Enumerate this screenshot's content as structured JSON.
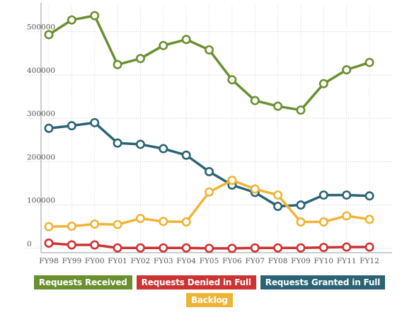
{
  "chart_data": {
    "type": "line",
    "categories": [
      "FY98",
      "FY99",
      "FY00",
      "FY01",
      "FY02",
      "FY03",
      "FY04",
      "FY05",
      "FY06",
      "FY07",
      "FY08",
      "FY09",
      "FY10",
      "FY11",
      "FY12"
    ],
    "y_tick_labels": [
      "0",
      "100000",
      "200000",
      "300000",
      "400000",
      "500000"
    ],
    "y_ticks": [
      0,
      100000,
      200000,
      300000,
      400000,
      500000
    ],
    "ylim": [
      -10000,
      560000
    ],
    "grid": true,
    "legend_position": "bottom",
    "series": [
      {
        "name": "Requests Received",
        "color": "#6a8f2f",
        "values": [
          493000,
          527000,
          537000,
          424000,
          438000,
          468000,
          482000,
          458000,
          389000,
          341000,
          328000,
          319000,
          380000,
          412000,
          429000
        ]
      },
      {
        "name": "Requests Denied in Full",
        "color": "#cc3333",
        "values": [
          12000,
          8000,
          8000,
          1000,
          1000,
          1000,
          1000,
          0,
          0,
          1000,
          1000,
          1000,
          2000,
          3000,
          3000
        ]
      },
      {
        "name": "Requests Granted in Full",
        "color": "#2a6374",
        "values": [
          277000,
          283000,
          290000,
          243000,
          240000,
          230000,
          215000,
          177000,
          146000,
          129000,
          97000,
          100000,
          123000,
          123000,
          121000
        ]
      },
      {
        "name": "Backlog",
        "color": "#f0b434",
        "values": [
          50000,
          51000,
          56000,
          55000,
          69000,
          62000,
          61000,
          130000,
          157000,
          137000,
          123000,
          61000,
          61000,
          75000,
          67000
        ]
      }
    ]
  }
}
